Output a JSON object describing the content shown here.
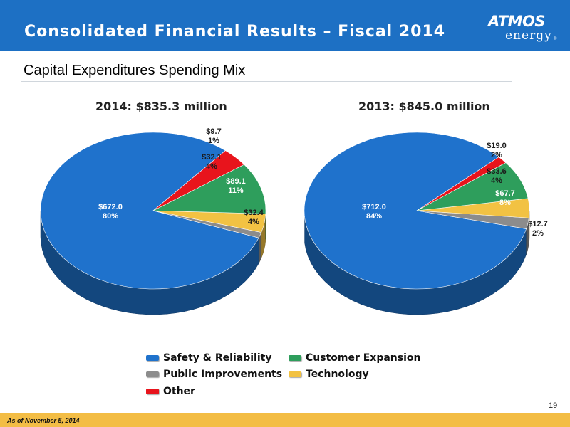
{
  "header": {
    "title": "Consolidated Financial Results – Fiscal 2014",
    "logo_main": "ATMOS",
    "logo_sub": "energy",
    "logo_reg": "®"
  },
  "subtitle": "Capital Expenditures Spending Mix",
  "colors": {
    "Safety & Reliability": "#1f72cc",
    "Public Improvements": "#8c8c8c",
    "Technology": "#f2c243",
    "Customer Expansion": "#2e9e5c",
    "Other": "#e8141c",
    "header": "#1d70c4",
    "footer": "#f3bd45"
  },
  "chart_data": [
    {
      "type": "pie",
      "title": "2014:  $835.3 million",
      "slices": [
        {
          "label": "Safety & Reliability",
          "value": 672.0,
          "value_label": "$672.0",
          "pct_label": "80%"
        },
        {
          "label": "Public Improvements",
          "value": 9.7,
          "value_label": "$9.7",
          "pct_label": "1%"
        },
        {
          "label": "Technology",
          "value": 32.1,
          "value_label": "$32.1",
          "pct_label": "4%"
        },
        {
          "label": "Customer Expansion",
          "value": 89.1,
          "value_label": "$89.1",
          "pct_label": "11%"
        },
        {
          "label": "Other",
          "value": 32.4,
          "value_label": "$32.4",
          "pct_label": "4%"
        }
      ]
    },
    {
      "type": "pie",
      "title": "2013:  $845.0 million",
      "slices": [
        {
          "label": "Safety & Reliability",
          "value": 712.0,
          "value_label": "$712.0",
          "pct_label": "84%"
        },
        {
          "label": "Public Improvements",
          "value": 19.0,
          "value_label": "$19.0",
          "pct_label": "2%"
        },
        {
          "label": "Technology",
          "value": 33.6,
          "value_label": "$33.6",
          "pct_label": "4%"
        },
        {
          "label": "Customer Expansion",
          "value": 67.7,
          "value_label": "$67.7",
          "pct_label": "8%"
        },
        {
          "label": "Other",
          "value": 12.7,
          "value_label": "$12.7",
          "pct_label": "2%"
        }
      ]
    }
  ],
  "legend": [
    "Safety & Reliability",
    "Customer Expansion",
    "Public Improvements",
    "Technology",
    "Other"
  ],
  "page_number": "19",
  "footer_note": "As of November 5, 2014"
}
